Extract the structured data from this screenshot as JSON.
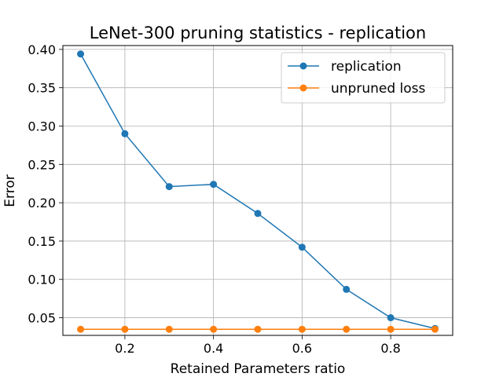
{
  "chart_data": {
    "type": "line",
    "title": "LeNet-300 pruning statistics - replication",
    "xlabel": "Retained Parameters ratio",
    "ylabel": "Error",
    "xlim": [
      0.06,
      0.94
    ],
    "ylim": [
      0.027,
      0.405
    ],
    "xticks": [
      0.2,
      0.4,
      0.6,
      0.8
    ],
    "xtick_labels": [
      "0.2",
      "0.4",
      "0.6",
      "0.8"
    ],
    "yticks": [
      0.05,
      0.1,
      0.15,
      0.2,
      0.25,
      0.3,
      0.35,
      0.4
    ],
    "ytick_labels": [
      "0.05",
      "0.10",
      "0.15",
      "0.20",
      "0.25",
      "0.30",
      "0.35",
      "0.40"
    ],
    "grid": true,
    "legend_position": "top-right",
    "x": [
      0.1,
      0.2,
      0.3,
      0.4,
      0.5,
      0.6,
      0.7,
      0.8,
      0.9
    ],
    "series": [
      {
        "name": "replication",
        "color": "#1f77b4",
        "values": [
          0.394,
          0.29,
          0.221,
          0.224,
          0.186,
          0.142,
          0.087,
          0.05,
          0.036
        ]
      },
      {
        "name": "unpruned loss",
        "color": "#ff7f0e",
        "values": [
          0.035,
          0.035,
          0.035,
          0.035,
          0.035,
          0.035,
          0.035,
          0.035,
          0.035
        ]
      }
    ]
  }
}
